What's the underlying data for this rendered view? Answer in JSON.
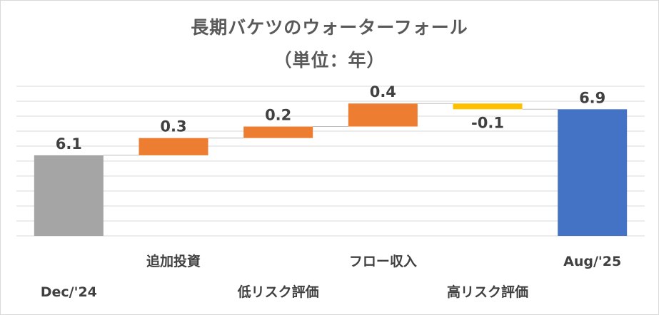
{
  "chart_data": {
    "type": "waterfall",
    "title": "長期バケツのウォーターフォール",
    "subtitle": "（単位：年）",
    "categories": [
      "Dec/'24",
      "追加投資",
      "低リスク評価",
      "フロー収入",
      "高リスク評価",
      "Aug/'25"
    ],
    "values": [
      6.1,
      0.3,
      0.2,
      0.4,
      -0.1,
      6.9
    ],
    "value_labels": [
      "6.1",
      "0.3",
      "0.2",
      "0.4",
      "-0.1",
      "6.9"
    ],
    "kinds": [
      "total",
      "delta",
      "delta",
      "delta",
      "delta",
      "total"
    ],
    "colors": {
      "start_total": "#a5a5a5",
      "increase": "#ed7d31",
      "decrease": "#ffc000",
      "end_total": "#4472c4",
      "gridline": "#d9d9d9",
      "text": "#404040",
      "title": "#595959"
    },
    "ylim": [
      4.7,
      7.3
    ],
    "grid": true,
    "axis_labels_visible": false,
    "legend": "none"
  }
}
